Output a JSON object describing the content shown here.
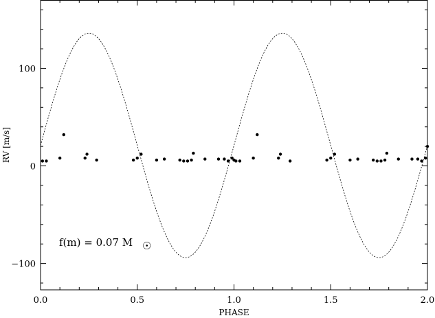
{
  "chart_data": {
    "type": "scatter",
    "title": "",
    "xlabel": "PHASE",
    "ylabel": "RV [m/s]",
    "xlim": [
      0.0,
      2.0
    ],
    "ylim": [
      -127,
      170
    ],
    "xticks": [
      0.0,
      0.5,
      1.0,
      1.5,
      2.0
    ],
    "xtick_labels": [
      "0.0",
      "0.5",
      "1.0",
      "1.5",
      "2.0"
    ],
    "yticks": [
      -100,
      0,
      100
    ],
    "ytick_labels": [
      "−100",
      "0",
      "100"
    ],
    "grid": false,
    "annotation": {
      "text": "f(m)  =  0.07  M",
      "symbol": "☉"
    },
    "model_curve": {
      "style": "dashed",
      "amplitude": 115,
      "offset": 21,
      "period": 1.0,
      "peak_phase": 0.25
    },
    "series": [
      {
        "marker": "dot",
        "x": [
          0.01,
          0.03,
          0.1,
          0.12,
          0.23,
          0.24,
          0.29,
          0.48,
          0.5,
          0.52,
          0.6,
          0.64,
          0.72,
          0.74,
          0.76,
          0.78,
          0.79,
          0.85,
          0.92,
          0.95,
          0.97,
          0.99,
          1.0,
          1.01,
          1.03,
          1.1,
          1.12,
          1.23,
          1.24,
          1.29,
          1.48,
          1.5,
          1.52,
          1.6,
          1.64,
          1.72,
          1.74,
          1.76,
          1.78,
          1.79,
          1.85,
          1.92,
          1.95,
          1.97,
          1.99,
          2.0
        ],
        "y": [
          5,
          5,
          8,
          32,
          8,
          12,
          6,
          6,
          8,
          12,
          6,
          7,
          6,
          5,
          5,
          6,
          13,
          7,
          7,
          7,
          5,
          8,
          6,
          5,
          5,
          8,
          32,
          8,
          12,
          5,
          6,
          8,
          12,
          6,
          7,
          6,
          5,
          5,
          6,
          13,
          7,
          7,
          7,
          5,
          8,
          20
        ]
      }
    ]
  }
}
